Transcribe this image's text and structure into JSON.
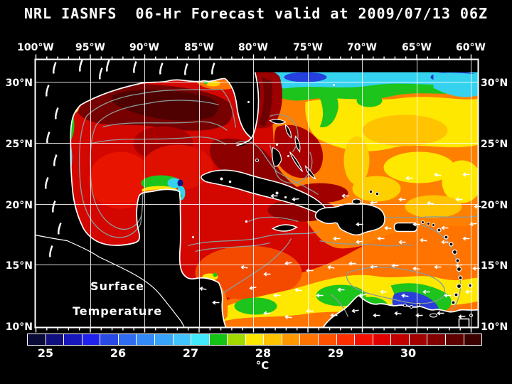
{
  "title": "NRL IASNFS  06-Hr Forecast valid at 2009/07/13 06Z",
  "map": {
    "overlay": {
      "line1": "Surface",
      "line2": "Temperature"
    },
    "lon_labels": [
      "100°W",
      "95°W",
      "90°W",
      "85°W",
      "80°W",
      "75°W",
      "70°W",
      "65°W",
      "60°W"
    ],
    "lat_labels": [
      "30°N",
      "25°N",
      "20°N",
      "15°N",
      "10°N"
    ]
  },
  "colorbar": {
    "tick_labels": [
      "25",
      "26",
      "27",
      "28",
      "29",
      "30"
    ],
    "unit": "°C",
    "colors": [
      "#0a0a38",
      "#10107e",
      "#1717bb",
      "#2222ee",
      "#2a4ae6",
      "#2f6cf0",
      "#3389f6",
      "#38a4f9",
      "#41c3fb",
      "#41e9fb",
      "#15c315",
      "#a2da00",
      "#ffe800",
      "#ffc300",
      "#ff9800",
      "#ff7300",
      "#ff5100",
      "#ff2f00",
      "#f31000",
      "#e00000",
      "#c30000",
      "#a30000",
      "#820000",
      "#5e0000",
      "#3b0000"
    ]
  },
  "chart_data": {
    "type": "heatmap",
    "title": "NRL IASNFS 06-Hr Forecast valid at 2009/07/13 06Z",
    "variable": "Surface Temperature",
    "unit": "°C",
    "x_axis": {
      "label": "Longitude",
      "ticks": [
        "100°W",
        "95°W",
        "90°W",
        "85°W",
        "80°W",
        "75°W",
        "70°W",
        "65°W",
        "60°W"
      ]
    },
    "y_axis": {
      "label": "Latitude",
      "ticks": [
        "30°N",
        "25°N",
        "20°N",
        "15°N",
        "10°N"
      ]
    },
    "colorbar_ticks": [
      25,
      26,
      27,
      28,
      29,
      30
    ],
    "colorbar_range_c": [
      24.75,
      31.0
    ],
    "notes": "Sea surface temperature over the Gulf of Mexico, Caribbean Sea and western North Atlantic. Warmest water (dark red, ~30.5-31°C) fills the northern Gulf of Mexico, Straits of Florida and Gulf Stream; Caribbean grades from red (~30°C) northwest to orange/yellow (~27.5-28.5°C) southeast; cool cyan/blue band (~25.5-27°C) along ~31°N in the Atlantic and in coastal upwelling along Venezuela, the Yucatan shelf and the western Gulf coast. Gray contours are bathymetry; white vectors are winds; land is black with white coastlines."
  }
}
